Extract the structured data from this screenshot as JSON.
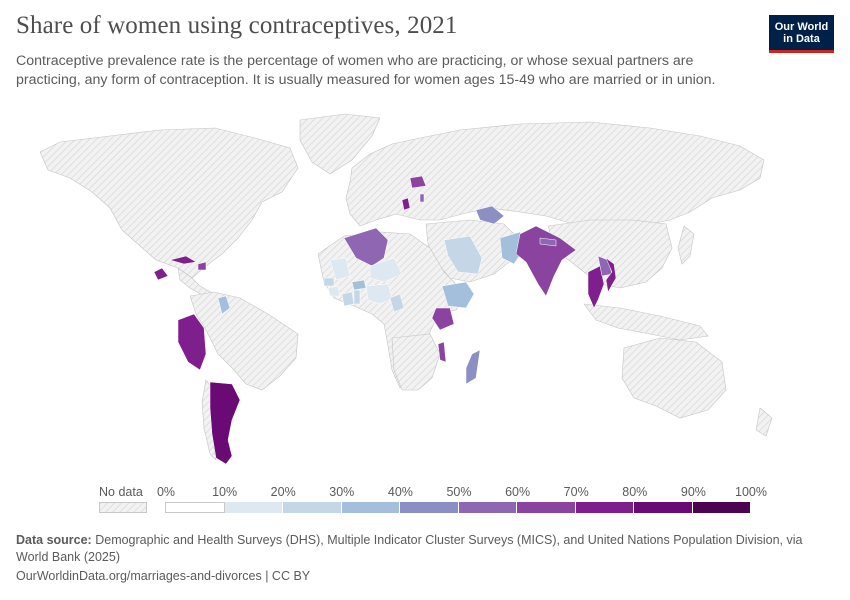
{
  "header": {
    "title": "Share of women using contraceptives, 2021",
    "subtitle": "Contraceptive prevalence rate is the percentage of women who are practicing, or whose sexual partners are practicing, any form of contraception. It is usually measured for women ages 15-49 who are married or in union.",
    "logo_line1": "Our World",
    "logo_line2": "in Data"
  },
  "legend": {
    "no_data_label": "No data",
    "ticks": [
      "0%",
      "10%",
      "20%",
      "30%",
      "40%",
      "50%",
      "60%",
      "70%",
      "80%",
      "90%",
      "100%"
    ],
    "colors": [
      "#ffffff",
      "#dde8f1",
      "#c5d7e6",
      "#a4bfdb",
      "#8c8fc4",
      "#8e66b1",
      "#8a44a0",
      "#7f1f8e",
      "#6a0a75",
      "#4c0451"
    ]
  },
  "colors": {
    "no_data_fill": "#f2f2f2",
    "hatch": "#d4d4d4",
    "border": "#bdbdbd"
  },
  "source": {
    "label": "Data source:",
    "text": "Demographic and Health Surveys (DHS), Multiple Indicator Cluster Surveys (MICS), and United Nations Population Division, via World Bank (2025)"
  },
  "footer": {
    "url": "OurWorldinData.org/marriages-and-divorces",
    "license": "CC BY"
  },
  "map_data": {
    "type": "choropleth",
    "year": "2021",
    "countries_with_data": [
      {
        "name": "Peru",
        "bin": "70-80%"
      },
      {
        "name": "Argentina",
        "bin": "80-90%"
      },
      {
        "name": "Honduras",
        "bin": "70-80%"
      },
      {
        "name": "Cuba",
        "bin": "70-80%"
      },
      {
        "name": "Dominican Republic",
        "bin": "60-70%"
      },
      {
        "name": "Guyana",
        "bin": "30-40%"
      },
      {
        "name": "Algeria",
        "bin": "50-60%"
      },
      {
        "name": "Mauritania",
        "bin": "10-20%"
      },
      {
        "name": "Niger",
        "bin": "10-20%"
      },
      {
        "name": "Senegal",
        "bin": "20-30%"
      },
      {
        "name": "Guinea",
        "bin": "10-20%"
      },
      {
        "name": "Sierra Leone",
        "bin": "20-30%"
      },
      {
        "name": "Côte d'Ivoire",
        "bin": "20-30%"
      },
      {
        "name": "Ghana",
        "bin": "20-30%"
      },
      {
        "name": "Togo",
        "bin": "20-30%"
      },
      {
        "name": "Burkina Faso",
        "bin": "30-40%"
      },
      {
        "name": "Nigeria",
        "bin": "10-20%"
      },
      {
        "name": "Cameroon",
        "bin": "20-30%"
      },
      {
        "name": "Ethiopia",
        "bin": "30-40%"
      },
      {
        "name": "Kenya",
        "bin": "60-70%"
      },
      {
        "name": "Malawi",
        "bin": "60-70%"
      },
      {
        "name": "Madagascar",
        "bin": "40-50%"
      },
      {
        "name": "Saudi Arabia",
        "bin": "20-30%"
      },
      {
        "name": "Pakistan",
        "bin": "30-40%"
      },
      {
        "name": "India",
        "bin": "60-70%"
      },
      {
        "name": "Nepal",
        "bin": "50-60%"
      },
      {
        "name": "Thailand",
        "bin": "70-80%"
      },
      {
        "name": "Vietnam",
        "bin": "70-80%"
      },
      {
        "name": "Laos",
        "bin": "50-60%"
      },
      {
        "name": "Uzbekistan",
        "bin": "40-50%"
      },
      {
        "name": "Turkmenistan",
        "bin": "40-50%"
      },
      {
        "name": "Belarus",
        "bin": "60-70%"
      },
      {
        "name": "Serbia",
        "bin": "70-80%"
      },
      {
        "name": "Moldova",
        "bin": "50-60%"
      }
    ]
  }
}
